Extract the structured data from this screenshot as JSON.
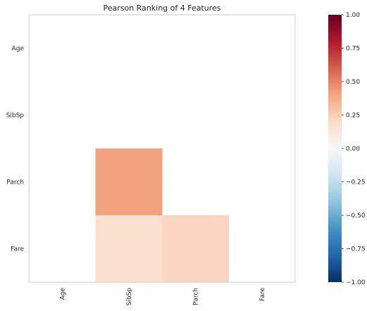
{
  "chart_data": {
    "type": "heatmap",
    "title": "Pearson Ranking of 4 Features",
    "features": [
      "Age",
      "SibSp",
      "Parch",
      "Fare"
    ],
    "matrix": [
      [
        null,
        null,
        null,
        null
      ],
      [
        null,
        null,
        null,
        null
      ],
      [
        null,
        0.41,
        null,
        null
      ],
      [
        null,
        0.16,
        0.22,
        null
      ]
    ],
    "colorbar": {
      "range": [
        -1.0,
        1.0
      ],
      "ticks": [
        "1.00",
        "0.75",
        "0.50",
        "0.25",
        "0.00",
        "−0.25",
        "−0.50",
        "−0.75",
        "−1.00"
      ],
      "tick_values": [
        1.0,
        0.75,
        0.5,
        0.25,
        0.0,
        -0.25,
        -0.5,
        -0.75,
        -1.0
      ],
      "colormap": "RdBu_r"
    },
    "grid": false
  }
}
